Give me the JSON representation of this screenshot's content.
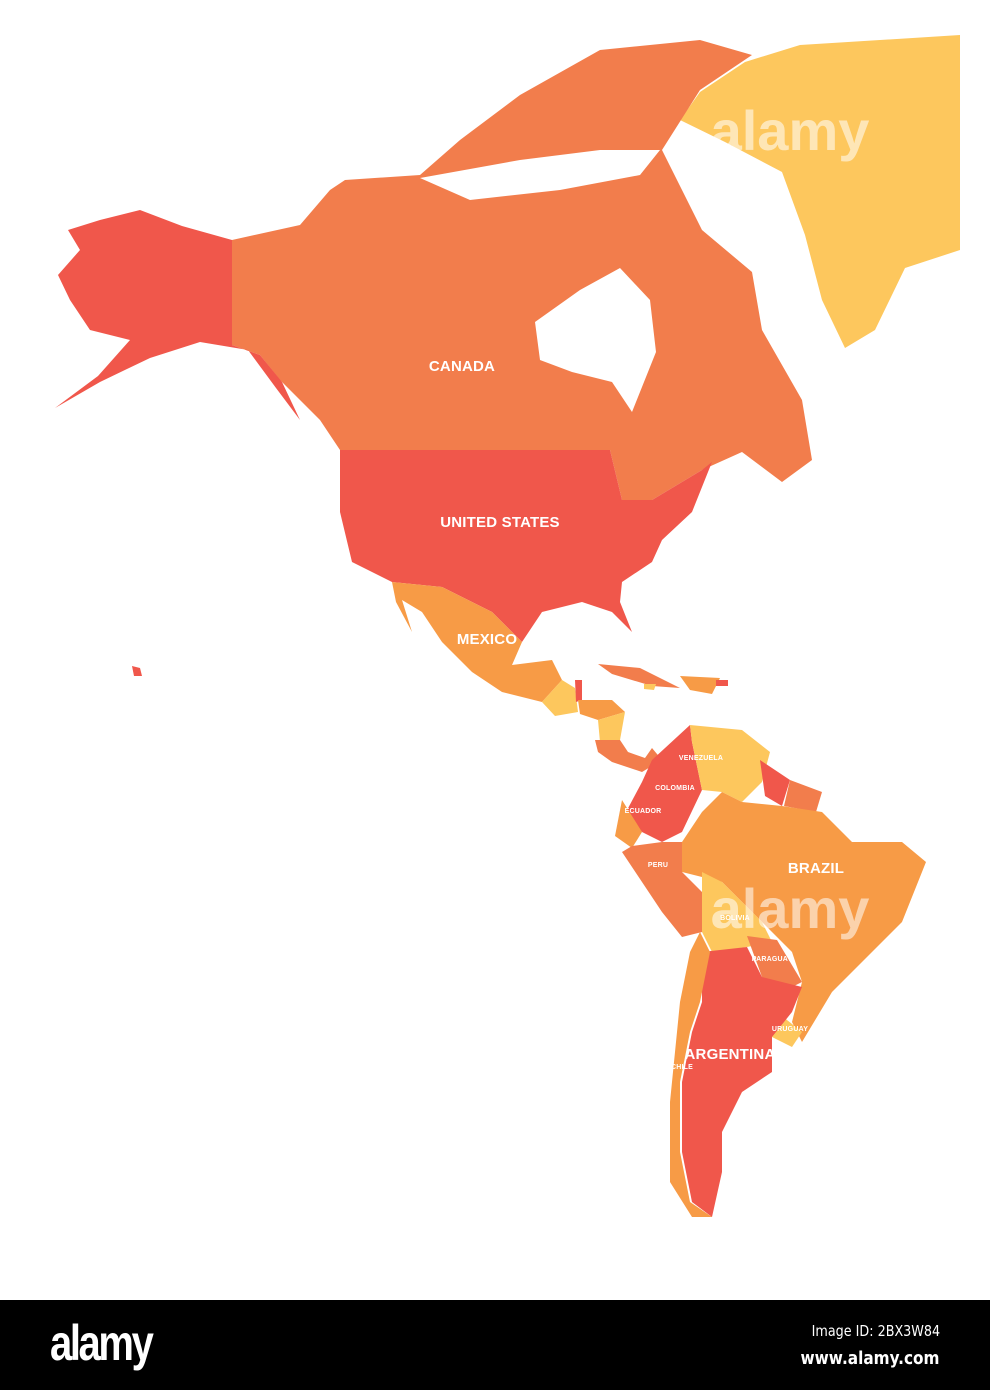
{
  "colors": {
    "red": "#f0574b",
    "orange_red": "#f27d4c",
    "orange": "#f79b46",
    "yellow": "#fdc75d",
    "background": "#ffffff",
    "footer": "#000000"
  },
  "map": {
    "labels": {
      "canada": "CANADA",
      "united_states": "UNITED STATES",
      "mexico": "MEXICO",
      "colombia": "COLOMBIA",
      "venezuela": "VENEZUELA",
      "ecuador": "ECUADOR",
      "peru": "PERU",
      "brazil": "BRAZIL",
      "bolivia": "BOLIVIA",
      "paraguay": "PARAGUAY",
      "uruguay": "URUGUAY",
      "argentina": "ARGENTINA",
      "chile": "CHILE"
    },
    "watermark": "alamy"
  },
  "footer": {
    "logo": "alamy",
    "image_id": "Image ID: 2BX3W84",
    "url": "www.alamy.com"
  }
}
